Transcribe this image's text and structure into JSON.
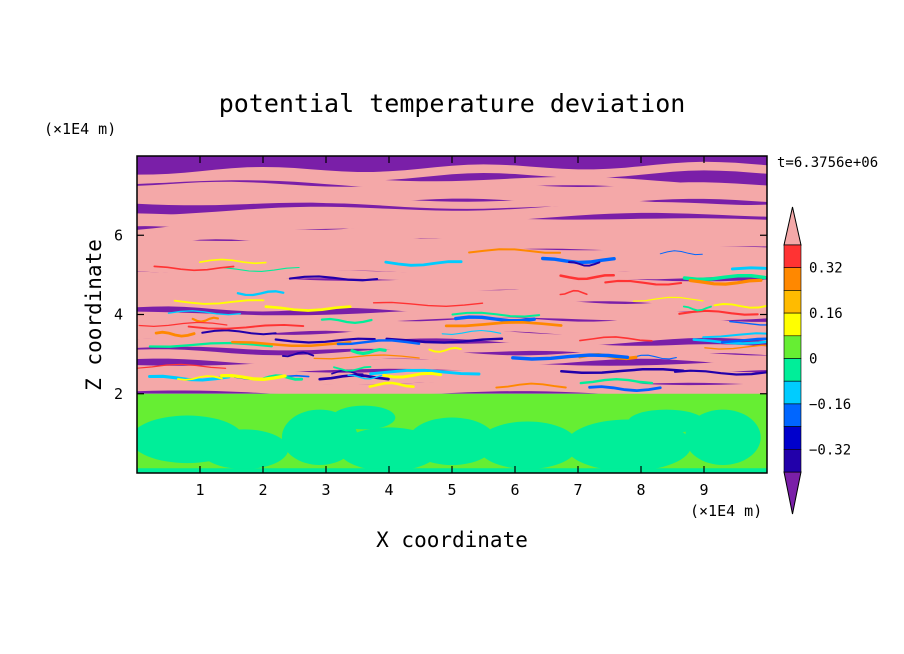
{
  "chart_data": {
    "type": "heatmap",
    "title": "potential temperature deviation",
    "xlabel": "X coordinate",
    "ylabel": "Z coordinate",
    "x_unit": "(×1E4 m)",
    "y_unit": "(×1E4 m)",
    "time_label": "t=6.3756e+06",
    "xlim": [
      0,
      10
    ],
    "ylim": [
      0,
      8
    ],
    "x_ticks": [
      "1",
      "2",
      "3",
      "4",
      "5",
      "6",
      "7",
      "8",
      "9"
    ],
    "y_ticks": [
      "2",
      "4",
      "6"
    ],
    "colorbar": {
      "levels": [
        -0.4,
        -0.32,
        -0.24,
        -0.16,
        -0.08,
        0,
        0.08,
        0.16,
        0.24,
        0.32,
        0.4
      ],
      "labels": [
        "0.32",
        "0.16",
        "0",
        "−0.16",
        "−0.32"
      ],
      "colors": [
        "#2200aa",
        "#0000cc",
        "#0066ff",
        "#00ccff",
        "#00ee99",
        "#66ee33",
        "#ffff00",
        "#ffbb00",
        "#ff8800",
        "#ff3333"
      ],
      "under_color": "#7a1fa8",
      "over_color": "#f4a8a8"
    },
    "regions": {
      "lower_layer": {
        "z_range": [
          0,
          2
        ],
        "description": "green/turquoise convective cells"
      },
      "upper_layer": {
        "z_range": [
          2,
          8
        ],
        "description": "alternating purple and pink stratified bands with turbulent filaments"
      }
    }
  }
}
